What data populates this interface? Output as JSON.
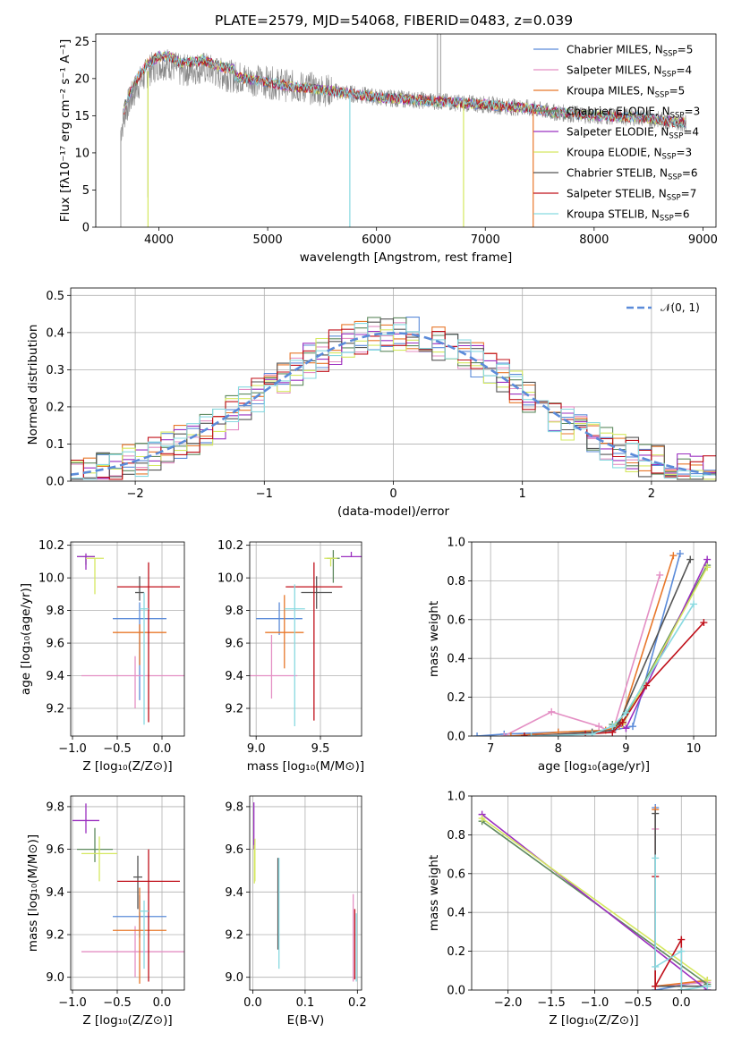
{
  "title": "PLATE=2579, MJD=54068, FIBERID=0483, z=0.039",
  "models": [
    {
      "name": "Chabrier MILES",
      "nssp": "5",
      "color": "#5b8bd9"
    },
    {
      "name": "Salpeter MILES",
      "nssp": "4",
      "color": "#e48fc4"
    },
    {
      "name": "Kroupa MILES",
      "nssp": "5",
      "color": "#e8772a"
    },
    {
      "name": "Chabrier ELODIE",
      "nssp": "3",
      "color": "#5f8a5f"
    },
    {
      "name": "Salpeter ELODIE",
      "nssp": "4",
      "color": "#9b30c0"
    },
    {
      "name": "Kroupa ELODIE",
      "nssp": "3",
      "color": "#d5e860"
    },
    {
      "name": "Chabrier STELIB",
      "nssp": "6",
      "color": "#555555"
    },
    {
      "name": "Salpeter STELIB",
      "nssp": "7",
      "color": "#c0101a"
    },
    {
      "name": "Kroupa STELIB",
      "nssp": "6",
      "color": "#88d9e0"
    }
  ],
  "chart_data": [
    {
      "id": "spectrum",
      "type": "line",
      "xlabel": "wavelength [Angstrom, rest frame]",
      "ylabel": "Flux [fλ10⁻¹⁷ erg cm⁻² s⁻¹ A⁻¹]",
      "xlim": [
        3420,
        9120
      ],
      "ylim": [
        0,
        26
      ],
      "xticks": [
        4000,
        5000,
        6000,
        7000,
        8000,
        9000
      ],
      "yticks": [
        0,
        5,
        10,
        15,
        20,
        25
      ],
      "grid": false,
      "legend": "top-right",
      "continuum": {
        "x": [
          3650,
          3700,
          3800,
          3900,
          4000,
          4100,
          4200,
          4400,
          4600,
          4800,
          5000,
          5200,
          5500,
          6000,
          6500,
          7000,
          7400,
          7600,
          8000,
          8400,
          8850
        ],
        "y": [
          13,
          16,
          19,
          21,
          22,
          22,
          21,
          21.5,
          20.5,
          20,
          19.5,
          19,
          18.5,
          17.5,
          17,
          16.5,
          16,
          15.5,
          15,
          14.8,
          14
        ]
      }
    },
    {
      "id": "residuals",
      "type": "histogram",
      "xlabel": "(data-model)/error",
      "ylabel": "Normed distribution",
      "xlim": [
        -2.5,
        2.5
      ],
      "ylim": [
        0,
        0.52
      ],
      "xticks": [
        -2,
        -1,
        0,
        1,
        2
      ],
      "yticks": [
        0.0,
        0.1,
        0.2,
        0.3,
        0.4,
        0.5
      ],
      "grid": true,
      "legend": "top-right",
      "reference_label": "𝒩(0, 1)",
      "bin_width": 0.1
    },
    {
      "id": "age_vs_Z",
      "type": "errorbar",
      "xlabel": "Z [log₁₀(Z/Z⊙)]",
      "ylabel": "age  [log₁₀(age/yr)]",
      "xlim": [
        -1.02,
        0.25
      ],
      "ylim": [
        9.03,
        10.22
      ],
      "xticks": [
        -1.0,
        -0.5,
        0.0
      ],
      "yticks": [
        9.2,
        9.4,
        9.6,
        9.8,
        10.0,
        10.2
      ],
      "points": [
        {
          "x": -0.25,
          "y": 9.75,
          "xerr": 0.3,
          "yerr": [
            0.5,
            0.1
          ]
        },
        {
          "x": -0.3,
          "y": 9.4,
          "xerr": 0.6,
          "yerr": [
            0.2,
            0.12
          ]
        },
        {
          "x": -0.25,
          "y": 9.665,
          "xerr": 0.3,
          "yerr": [
            0.2,
            0.05
          ]
        },
        {
          "x": -0.85,
          "y": 10.13,
          "xerr": 0.1,
          "yerr": [
            0.05,
            0.0
          ]
        },
        {
          "x": -0.85,
          "y": 10.13,
          "xerr": 0.1,
          "yerr": [
            0.08,
            0.02
          ]
        },
        {
          "x": -0.75,
          "y": 10.12,
          "xerr": 0.1,
          "yerr": [
            0.22,
            0.0
          ]
        },
        {
          "x": -0.25,
          "y": 9.91,
          "xerr": 0.05,
          "yerr": [
            0.05,
            0.1
          ]
        },
        {
          "x": -0.15,
          "y": 9.945,
          "xerr": 0.35,
          "yerr": [
            0.83,
            0.15
          ]
        },
        {
          "x": -0.2,
          "y": 9.81,
          "xerr": 0.05,
          "yerr": [
            0.71,
            0.1
          ]
        }
      ]
    },
    {
      "id": "age_vs_mass",
      "type": "errorbar",
      "xlabel": "mass [log₁₀(M/M⊙)]",
      "ylabel": "",
      "xlim": [
        8.95,
        9.82
      ],
      "ylim": [
        9.03,
        10.22
      ],
      "xticks": [
        9.0,
        9.5
      ],
      "yticks": [
        9.2,
        9.4,
        9.6,
        9.8,
        10.0,
        10.2
      ],
      "points": [
        {
          "x": 9.18,
          "y": 9.75,
          "xerr": 0.18,
          "yerr": [
            0.1,
            0.1
          ]
        },
        {
          "x": 9.12,
          "y": 9.4,
          "xerr": 0.2,
          "yerr": [
            0.14,
            0.25
          ]
        },
        {
          "x": 9.22,
          "y": 9.665,
          "xerr": 0.15,
          "yerr": [
            0.22,
            0.23
          ]
        },
        {
          "x": 9.6,
          "y": 10.12,
          "xerr": 0.05,
          "yerr": [
            0.15,
            0.05
          ]
        },
        {
          "x": 9.74,
          "y": 10.13,
          "xerr": 0.08,
          "yerr": [
            0.0,
            0.03
          ]
        },
        {
          "x": 9.58,
          "y": 10.12,
          "xerr": 0.05,
          "yerr": [
            0.05,
            0.0
          ]
        },
        {
          "x": 9.47,
          "y": 9.91,
          "xerr": 0.12,
          "yerr": [
            0.1,
            0.1
          ]
        },
        {
          "x": 9.45,
          "y": 9.945,
          "xerr": 0.22,
          "yerr": [
            0.82,
            0.15
          ]
        },
        {
          "x": 9.3,
          "y": 9.81,
          "xerr": 0.08,
          "yerr": [
            0.72,
            0.15
          ]
        }
      ]
    },
    {
      "id": "weight_vs_age",
      "type": "line",
      "xlabel": "age  [log₁₀(age/yr)]",
      "ylabel": "mass weight",
      "xlim": [
        6.72,
        10.33
      ],
      "ylim": [
        0,
        1
      ],
      "xticks": [
        7,
        8,
        9,
        10
      ],
      "yticks": [
        0.0,
        0.2,
        0.4,
        0.6,
        0.8,
        1.0
      ],
      "grid": true,
      "series": [
        {
          "x": [
            6.8,
            7.2,
            8.0,
            8.8,
            9.1,
            9.8
          ],
          "y": [
            0.0,
            0.01,
            0.02,
            0.03,
            0.05,
            0.94
          ]
        },
        {
          "x": [
            7.2,
            7.9,
            8.6,
            8.8,
            9.5
          ],
          "y": [
            0.0,
            0.125,
            0.05,
            0.02,
            0.83
          ]
        },
        {
          "x": [
            7.3,
            8.0,
            8.7,
            8.9,
            9.7
          ],
          "y": [
            0.0,
            0.02,
            0.03,
            0.05,
            0.93
          ]
        },
        {
          "x": [
            8.8,
            8.95,
            10.2
          ],
          "y": [
            0.06,
            0.07,
            0.88
          ]
        },
        {
          "x": [
            8.9,
            9.0,
            10.2
          ],
          "y": [
            0.06,
            0.04,
            0.91
          ]
        },
        {
          "x": [
            8.85,
            8.95,
            10.2
          ],
          "y": [
            0.06,
            0.06,
            0.87
          ]
        },
        {
          "x": [
            7.5,
            8.5,
            8.8,
            8.9,
            9.95
          ],
          "y": [
            0.0,
            0.02,
            0.03,
            0.07,
            0.91
          ]
        },
        {
          "x": [
            7.5,
            8.4,
            8.8,
            8.95,
            9.3,
            10.15
          ],
          "y": [
            0.0,
            0.01,
            0.02,
            0.07,
            0.26,
            0.585
          ]
        },
        {
          "x": [
            7.6,
            8.5,
            8.8,
            9.0,
            10.0
          ],
          "y": [
            0.0,
            0.01,
            0.05,
            0.12,
            0.68
          ]
        }
      ]
    },
    {
      "id": "mass_vs_Z",
      "type": "errorbar",
      "xlabel": "Z [log₁₀(Z/Z⊙)]",
      "ylabel": "mass [log₁₀(M/M⊙)]",
      "xlim": [
        -1.02,
        0.25
      ],
      "ylim": [
        8.94,
        9.85
      ],
      "xticks": [
        -1.0,
        -0.5,
        0.0
      ],
      "yticks": [
        9.0,
        9.2,
        9.4,
        9.6,
        9.8
      ],
      "points": [
        {
          "x": -0.25,
          "y": 9.285,
          "xerr": 0.3,
          "yerr": [
            0.1,
            0.1
          ]
        },
        {
          "x": -0.3,
          "y": 9.12,
          "xerr": 0.6,
          "yerr": [
            0.12,
            0.12
          ]
        },
        {
          "x": -0.25,
          "y": 9.22,
          "xerr": 0.3,
          "yerr": [
            0.25,
            0.2
          ]
        },
        {
          "x": -0.75,
          "y": 9.6,
          "xerr": 0.2,
          "yerr": [
            0.06,
            0.1
          ]
        },
        {
          "x": -0.85,
          "y": 9.735,
          "xerr": 0.15,
          "yerr": [
            0.06,
            0.08
          ]
        },
        {
          "x": -0.7,
          "y": 9.58,
          "xerr": 0.2,
          "yerr": [
            0.13,
            0.08
          ]
        },
        {
          "x": -0.27,
          "y": 9.47,
          "xerr": 0.05,
          "yerr": [
            0.15,
            0.1
          ]
        },
        {
          "x": -0.15,
          "y": 9.45,
          "xerr": 0.35,
          "yerr": [
            0.47,
            0.15
          ]
        },
        {
          "x": -0.2,
          "y": 9.31,
          "xerr": 0.05,
          "yerr": [
            0.27,
            0.05
          ]
        }
      ]
    },
    {
      "id": "mass_vs_ebv",
      "type": "errorbar",
      "xlabel": "E(B-V)",
      "ylabel": "",
      "xlim": [
        -0.006,
        0.208
      ],
      "ylim": [
        8.94,
        9.85
      ],
      "xticks": [
        0.0,
        0.1,
        0.2
      ],
      "yticks": [
        9.0,
        9.2,
        9.4,
        9.6,
        9.8
      ],
      "points": [
        {
          "x": 0.002,
          "y": 9.7,
          "xerr": 0,
          "yerr": [
            0.1,
            0.12
          ]
        },
        {
          "x": 0.004,
          "y": 9.6,
          "xerr": 0,
          "yerr": [
            0.15,
            0.05
          ]
        },
        {
          "x": 0.003,
          "y": 9.5,
          "xerr": 0,
          "yerr": [
            0.06,
            0.12
          ]
        },
        {
          "x": 0.048,
          "y": 9.35,
          "xerr": 0,
          "yerr": [
            0.22,
            0.21
          ]
        },
        {
          "x": 0.05,
          "y": 9.3,
          "xerr": 0,
          "yerr": [
            0.26,
            0.26
          ]
        },
        {
          "x": 0.192,
          "y": 9.15,
          "xerr": 0,
          "yerr": [
            0.17,
            0.24
          ]
        },
        {
          "x": 0.195,
          "y": 9.12,
          "xerr": 0,
          "yerr": [
            0.13,
            0.2
          ]
        },
        {
          "x": 0.198,
          "y": 9.1,
          "xerr": 0,
          "yerr": [
            0.12,
            0.2
          ]
        }
      ]
    },
    {
      "id": "weight_vs_Z",
      "type": "line",
      "xlabel": "Z [log₁₀(Z/Z⊙)]",
      "ylabel": "mass weight",
      "xlim": [
        -2.42,
        0.4
      ],
      "ylim": [
        0,
        1
      ],
      "xticks": [
        -2.0,
        -1.5,
        -1.0,
        -0.5,
        0.0
      ],
      "yticks": [
        0.0,
        0.2,
        0.4,
        0.6,
        0.8,
        1.0
      ],
      "grid": true,
      "series": [
        {
          "x": [
            -0.3,
            -0.3,
            0.3
          ],
          "y": [
            0.94,
            0.0,
            0.05
          ]
        },
        {
          "x": [
            -0.3,
            -0.3,
            0.3
          ],
          "y": [
            0.83,
            0.02,
            0.04
          ]
        },
        {
          "x": [
            -0.3,
            -0.3,
            0.3
          ],
          "y": [
            0.93,
            0.02,
            0.05
          ]
        },
        {
          "x": [
            -2.3,
            0.3
          ],
          "y": [
            0.87,
            0.03
          ]
        },
        {
          "x": [
            -2.3,
            0.3
          ],
          "y": [
            0.905,
            0.0
          ]
        },
        {
          "x": [
            -2.3,
            0.3
          ],
          "y": [
            0.885,
            0.05
          ]
        },
        {
          "x": [
            -0.3,
            -0.3,
            0.3
          ],
          "y": [
            0.91,
            0.02,
            0.02
          ]
        },
        {
          "x": [
            -0.3,
            -0.3,
            0.0,
            0.0
          ],
          "y": [
            0.585,
            0.02,
            0.26,
            0.0
          ]
        },
        {
          "x": [
            -0.3,
            -0.3,
            0.0,
            0.0,
            0.3
          ],
          "y": [
            0.68,
            0.12,
            0.2,
            0.0,
            0.02
          ]
        }
      ]
    }
  ]
}
